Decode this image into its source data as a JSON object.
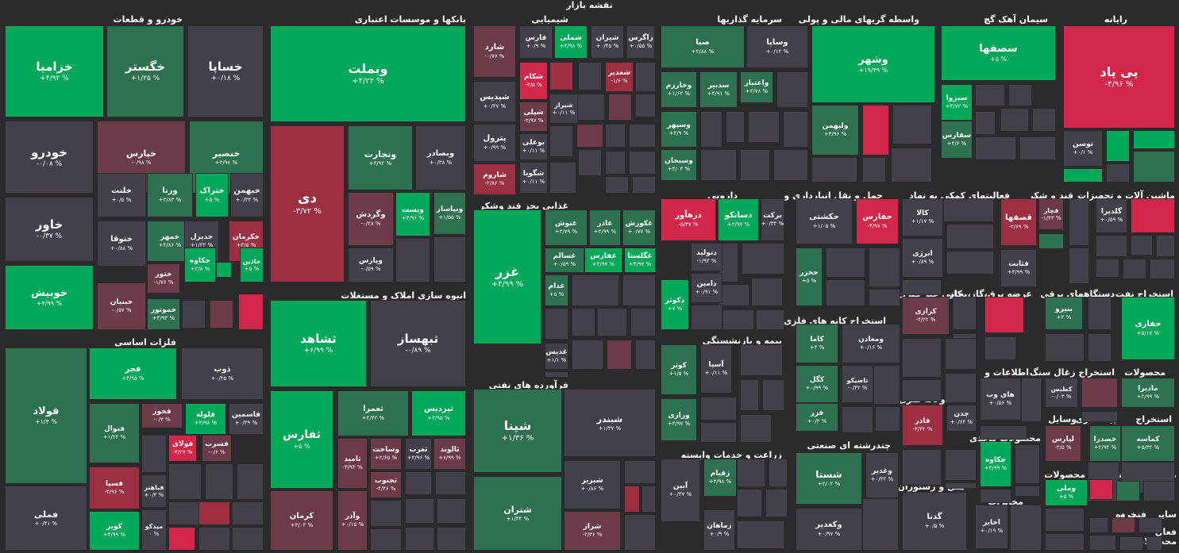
{
  "title": "نقشه بازار",
  "palette": {
    "G3": "#00a85a",
    "G2": "#1a9654",
    "G1": "#2e7152",
    "N": "#444049",
    "R1": "#6d3a47",
    "R2": "#9c2f42",
    "R3": "#d2264a"
  },
  "sectors": [
    {
      "n": "خودرو و قطعات",
      "rx": "خودرو",
      "ry": "y1"
    },
    {
      "n": "بانکها و موسسات اعتباری"
    },
    {
      "n": "شیمیایی"
    },
    {
      "n": "سرمایه گذاریها"
    },
    {
      "n": "واسطه گریهای مالی و پولی"
    },
    {
      "n": "سیمان آهک گچ"
    },
    {
      "n": "رایانه"
    },
    {
      "n": "فلزات اساسی"
    },
    {
      "n": "انبوه سازی املاک و مستغلات"
    },
    {
      "n": "غذایی بجز قند وشکر"
    },
    {
      "n": "دارویی"
    },
    {
      "n": "حمل و نقل انبارداری و"
    },
    {
      "n": "فعالیتهای کمکی به نهاد"
    },
    {
      "n": "قند و شکر"
    },
    {
      "n": "ماشین آلات و تجهیزات"
    },
    {
      "n": "فرآورده های نفتی"
    },
    {
      "n": "استخراج کانه های فلزی"
    },
    {
      "n": "کانی غیر فلزی"
    },
    {
      "n": "عرضه برق،گاز،بخار"
    },
    {
      "n": "دستگاههای برقی"
    },
    {
      "n": "استخراج نفت"
    },
    {
      "n": "بیمه و بازنشستگی"
    },
    {
      "n": "اطلاعات و"
    },
    {
      "n": "استخراج زغال سنگ"
    },
    {
      "n": "محصولات"
    },
    {
      "n": "محصولات فلزی"
    },
    {
      "n": "وسایل"
    },
    {
      "n": "پیمانکاری"
    },
    {
      "n": "استخراج"
    },
    {
      "n": "چندرشته ای صنعتی"
    },
    {
      "n": "محصولات کاغذی"
    },
    {
      "n": "زراعت و خدمات وابسته"
    },
    {
      "n": "هتل و رستوران"
    },
    {
      "n": "محصولات"
    },
    {
      "n": "لاستیک و"
    },
    {
      "n": "منسوجات"
    },
    {
      "n": "مخابرات"
    },
    {
      "n": "کاشی و"
    },
    {
      "n": "خرده"
    },
    {
      "n": "فنی و"
    },
    {
      "n": "سایر"
    },
    {
      "n": "محصولات"
    },
    {
      "n": "فعال"
    }
  ],
  "stocks": [
    {
      "n": "خزامیا",
      "p": "+۴/۹۲ %"
    },
    {
      "n": "خگستر",
      "p": "+۱/۲۵ %"
    },
    {
      "n": "خساپا",
      "p": "+۰/۱۸ %"
    },
    {
      "n": "خودرو",
      "p": "-۰/۰۸ %"
    },
    {
      "n": "خپارس",
      "p": "-۰/۹۸ %"
    },
    {
      "n": "خنصیر",
      "p": "+۳/۹۸ %"
    },
    {
      "n": "خلنت",
      "p": "+۰/۵ %"
    },
    {
      "n": "ورنا",
      "p": "+۳/۸۳ %"
    },
    {
      "n": "ختراک",
      "p": "+۵ %"
    },
    {
      "n": "خبهمن",
      "p": "+۰/۴۴ %"
    },
    {
      "n": "خاور",
      "p": "-۰/۳۷ %"
    },
    {
      "n": "ختوقا",
      "p": "+۰/۸۸ %"
    },
    {
      "n": "خمهر",
      "p": "+۳/۸۶ %"
    },
    {
      "n": "خدیزل",
      "p": "+۱/۳۲ %"
    },
    {
      "n": "خکرمان",
      "p": "+۳/۵ %"
    },
    {
      "n": "خکاوه",
      "p": "+۲/۸ %"
    },
    {
      "n": "خاذین",
      "p": "+۵ %"
    },
    {
      "n": "ختور",
      "p": "-۱/۷۶ %"
    },
    {
      "n": "خوبیش",
      "p": "+۴/۹۹ %"
    },
    {
      "n": "خبنیان",
      "p": "-۰/۵۷ %"
    },
    {
      "n": "خموتور",
      "p": "+۴/۹۳ %"
    },
    {
      "n": "وبملت",
      "p": "+۴/۲۲ %"
    },
    {
      "n": "دی",
      "p": "-۳/۷۲ %"
    },
    {
      "n": "وتجارت",
      "p": "+۴/۹۲ %"
    },
    {
      "n": "وبصادر",
      "p": "+۰/۳۸ %"
    },
    {
      "n": "وگردش",
      "p": "-۰/۲۸ %"
    },
    {
      "n": "وبست",
      "p": "+۴/۹۶ %"
    },
    {
      "n": "وبپاسار",
      "p": "+۱/۵۵ %"
    },
    {
      "n": "وپارس",
      "p": "-۰/۵۹ %"
    },
    {
      "n": "شارد",
      "p": "-۰/۷۷ %"
    },
    {
      "n": "فارس",
      "p": "+۰/۹ %"
    },
    {
      "n": "شملی",
      "p": "+۳/۹۸ %"
    },
    {
      "n": "شیران",
      "p": "+۰/۴۵ %"
    },
    {
      "n": "زاگرس",
      "p": "+۰/۵۵ %"
    },
    {
      "n": "شپدیس",
      "p": "+۰/۴۷ %"
    },
    {
      "n": "شکام",
      "p": "-۴/۵ %"
    },
    {
      "n": "شغدیر",
      "p": "-۱/۶ %"
    },
    {
      "n": "شپلی",
      "p": "-۲/۹۷ %"
    },
    {
      "n": "شیراز",
      "p": "+۰/۱۱ %"
    },
    {
      "n": "پترول",
      "p": "+۰/۹۹ %"
    },
    {
      "n": "بوعلی",
      "p": "+۰/۱۱ %"
    },
    {
      "n": "شاروم",
      "p": "-۲/۸۶ %"
    },
    {
      "n": "شگویا",
      "p": "+۰/۱۱ %"
    },
    {
      "n": "صبا",
      "p": "+۲/۸۸ %"
    },
    {
      "n": "وساپا",
      "p": "+۰/۱۲ %"
    },
    {
      "n": "وخارزم",
      "p": "+۱/۶۲ %"
    },
    {
      "n": "سدبیر",
      "p": "+۴/۹۱ %"
    },
    {
      "n": "واعتبار",
      "p": "+۴/۷۸ %"
    },
    {
      "n": "وسپهر",
      "p": "+۴/۹ %"
    },
    {
      "n": "وسبحان",
      "p": "+۴/۰۳ %"
    },
    {
      "n": "وشهر",
      "p": "+۱۹/۴۹ %"
    },
    {
      "n": "ولبهمن",
      "p": "+۴/۹۶ %"
    },
    {
      "n": "سصفها",
      "p": "+۵ %"
    },
    {
      "n": "سبزوا",
      "p": "+۴/۷۲ %"
    },
    {
      "n": "سفارس",
      "p": "+۴/۶ %"
    },
    {
      "n": "پی پاد",
      "p": "-۴/۹۶ %"
    },
    {
      "n": "توسن",
      "p": "+۰/۱ %"
    },
    {
      "n": "فولاد",
      "p": "+۱/۴ %"
    },
    {
      "n": "فجر",
      "p": "+۴/۹۵ %"
    },
    {
      "n": "ذوب",
      "p": "+۰/۳۵ %"
    },
    {
      "n": "فنوال",
      "p": "+۱/۲۴ %"
    },
    {
      "n": "فخوز",
      "p": "-۰/۳ %"
    },
    {
      "n": "فلوله",
      "p": "+۴/۹۸ %"
    },
    {
      "n": "فاسمین",
      "p": "+۰/۴۹ %"
    },
    {
      "n": "فولای",
      "p": "-۴/۲۷ %"
    },
    {
      "n": "فسرب",
      "p": "-۰/۶ %"
    },
    {
      "n": "فسپا",
      "p": "-۳/۹۶ %"
    },
    {
      "n": "فباهنر",
      "p": "+۰/۴ %"
    },
    {
      "n": "فملی",
      "p": "+۰/۴۱ %"
    },
    {
      "n": "کویر",
      "p": "+۴/۹۹ %"
    },
    {
      "n": "میدکو",
      "p": "۰ %"
    },
    {
      "n": "ثشاهد",
      "p": "+۶/۹۹ %"
    },
    {
      "n": "ثبهساز",
      "p": "-۰/۸۹ %"
    },
    {
      "n": "ثفارس",
      "p": "+۵ %"
    },
    {
      "n": "ثعمرا",
      "p": "+۳/۴۲ %"
    },
    {
      "n": "ثپردیس",
      "p": "+۴/۹۵ %"
    },
    {
      "n": "ثامید",
      "p": "-۳/۹۳ %"
    },
    {
      "n": "وساخت",
      "p": "+۲/۶۵ %"
    },
    {
      "n": "ثغرب",
      "p": "+۲/۹۶ %"
    },
    {
      "n": "ثالوند",
      "p": "+۶/۹۹ %"
    },
    {
      "n": "ثجنوب",
      "p": "-۴/۴۶ %"
    },
    {
      "n": "کرمان",
      "p": "+۳/۰۴ %"
    },
    {
      "n": "وآذر",
      "p": "+۰/۱۵ %"
    },
    {
      "n": "غزر",
      "p": "+۴/۹۹ %"
    },
    {
      "n": "غنوش",
      "p": "+۲/۷۹ %"
    },
    {
      "n": "غاذر",
      "p": "+۴/۹۹ %"
    },
    {
      "n": "غکورش",
      "p": "+۰/۷۷ %"
    },
    {
      "n": "غسالم",
      "p": "+۰/۵۹ %"
    },
    {
      "n": "غفارس",
      "p": "+۴/۹۷ %"
    },
    {
      "n": "غگلستا",
      "p": "+۴/۹۷ %"
    },
    {
      "n": "غدام",
      "p": "+۵ %"
    },
    {
      "n": "غدیس",
      "p": "+۱/۱ %"
    },
    {
      "n": "درهآور",
      "p": "-۵/۴۷ %"
    },
    {
      "n": "دسانکو",
      "p": "+۲/۹۷ %"
    },
    {
      "n": "برکت",
      "p": "+۰/۳۳ %"
    },
    {
      "n": "دتولید",
      "p": "-۱/۹۳ %"
    },
    {
      "n": "دامین",
      "p": "+۰/۹۱ %"
    },
    {
      "n": "دکوثر",
      "p": "+۷ %"
    },
    {
      "n": "حکشتی",
      "p": "+۱/۰۵ %"
    },
    {
      "n": "حفارس",
      "p": "-۴/۹۷ %"
    },
    {
      "n": "حخزر",
      "p": "+۵ %"
    },
    {
      "n": "کالا",
      "p": "+۱/۱۷ %"
    },
    {
      "n": "انرژی",
      "p": "+۰/۸۹ %"
    },
    {
      "n": "قصفها",
      "p": "-۲/۶۹ %"
    },
    {
      "n": "قچار",
      "p": "-۱/۴۳ %"
    },
    {
      "n": "قثابت",
      "p": "+۳/۹۹ %"
    },
    {
      "n": "گلدیرا",
      "p": "+۰/۵۹ %"
    },
    {
      "n": "شپنا",
      "p": "+۱/۳۶ %"
    },
    {
      "n": "شبندر",
      "p": "+۱/۳۷ %"
    },
    {
      "n": "شتران",
      "p": "+۱/۳۴ %"
    },
    {
      "n": "شبریز",
      "p": "+۰/۸۶ %"
    },
    {
      "n": "شراز",
      "p": "-۲/۳۶ %"
    },
    {
      "n": "کاما",
      "p": "+۳ %"
    },
    {
      "n": "ومعادن",
      "p": "+۰/۱۶ %"
    },
    {
      "n": "کگل",
      "p": "+۰/۹۹ %"
    },
    {
      "n": "تاصیکو",
      "p": "-۰/۴۲ %"
    },
    {
      "n": "فزر",
      "p": "+۰/۲ %"
    },
    {
      "n": "کرازی",
      "p": "-۴/۲۲ %"
    },
    {
      "n": "بنیرو",
      "p": "+۲ %"
    },
    {
      "n": "حفاری",
      "p": "+۵/۱۷ %"
    },
    {
      "n": "کوثر",
      "p": "+۱/۵ %"
    },
    {
      "n": "آسیا",
      "p": "+۰/۱۱ %"
    },
    {
      "n": "ورازی",
      "p": "+۴/۹۷ %"
    },
    {
      "n": "های وب",
      "p": "+۰/۵۶ %"
    },
    {
      "n": "کطبس",
      "p": "-۰/۰۴ %"
    },
    {
      "n": "مادیرا",
      "p": "+۲/۹۹ %"
    },
    {
      "n": "فاذر",
      "p": "-۴/۳۲ %"
    },
    {
      "n": "چدن",
      "p": "+۰/۶۴ %"
    },
    {
      "n": "لپارس",
      "p": "-۴/۵ %"
    },
    {
      "n": "خصدرا",
      "p": "+۲/۹۴ %"
    },
    {
      "n": "کماسه",
      "p": "+۵/۳۴ %"
    },
    {
      "n": "شستا",
      "p": "+۲/۰۲ %"
    },
    {
      "n": "وغدیر",
      "p": "+۰/۴۲ %"
    },
    {
      "n": "وکغدیر",
      "p": "+۰/۹۷ %"
    },
    {
      "n": "چکاوه",
      "p": "+۴/۹۹ %"
    },
    {
      "n": "زقیام",
      "p": "+۴/۹۸ %"
    },
    {
      "n": "آبین",
      "p": "+۰/۳۷ %"
    },
    {
      "n": "زماهان",
      "p": "+۰/۹ %"
    },
    {
      "n": "گدنا",
      "p": "+۰/۵ %"
    },
    {
      "n": "اخابر",
      "p": "+۰/۱۹ %"
    },
    {
      "n": "وملی",
      "p": "+۵ %"
    }
  ]
}
